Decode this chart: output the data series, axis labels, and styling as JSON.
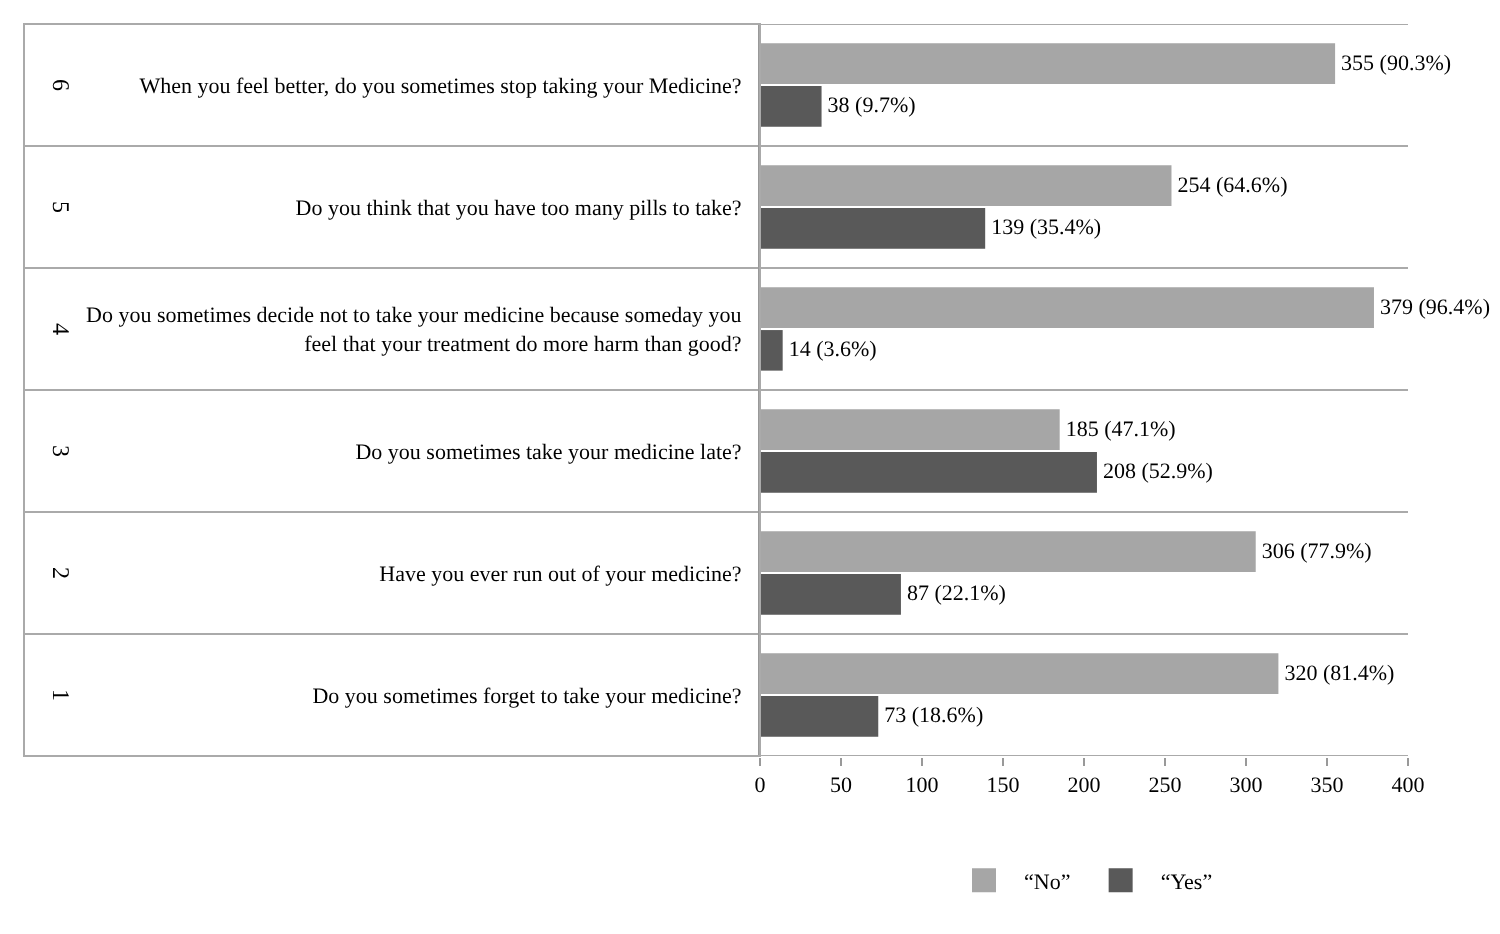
{
  "chart_data": {
    "type": "bar",
    "orientation": "horizontal",
    "categories": [
      "When you feel better, do you sometimes stop taking your Medicine?",
      "Do you think that you have too many pills to take?",
      "Do you sometimes decide not to take your medicine because someday you feel that your treatment do more harm than good?",
      "Do you sometimes take your medicine late?",
      "Have you ever run out of your medicine?",
      "Do you sometimes forget to take your medicine?"
    ],
    "series": [
      {
        "name": "“No”",
        "color": "#a6a6a6",
        "values": [
          355,
          254,
          379,
          185,
          306,
          320
        ],
        "value_labels": [
          "355 (90.3%)",
          "254 (64.6%)",
          "379 (96.4%)",
          "185 (47.1%)",
          "306 (77.9%)",
          "320 (81.4%)"
        ]
      },
      {
        "name": "“Yes”",
        "color": "#595959",
        "values": [
          38,
          139,
          14,
          208,
          87,
          73
        ],
        "value_labels": [
          "38 (9.7%)",
          "139 (35.4%)",
          "14 (3.6%)",
          "208 (52.9%)",
          "87 (22.1%)",
          "73 (18.6%)"
        ]
      }
    ],
    "annotations": [
      "6",
      "5",
      "4",
      "3",
      "2",
      "1"
    ],
    "xlim": [
      0,
      400
    ],
    "xticks": [
      0,
      50,
      100,
      150,
      200,
      250,
      300,
      350,
      400
    ],
    "legend": "bottom"
  }
}
